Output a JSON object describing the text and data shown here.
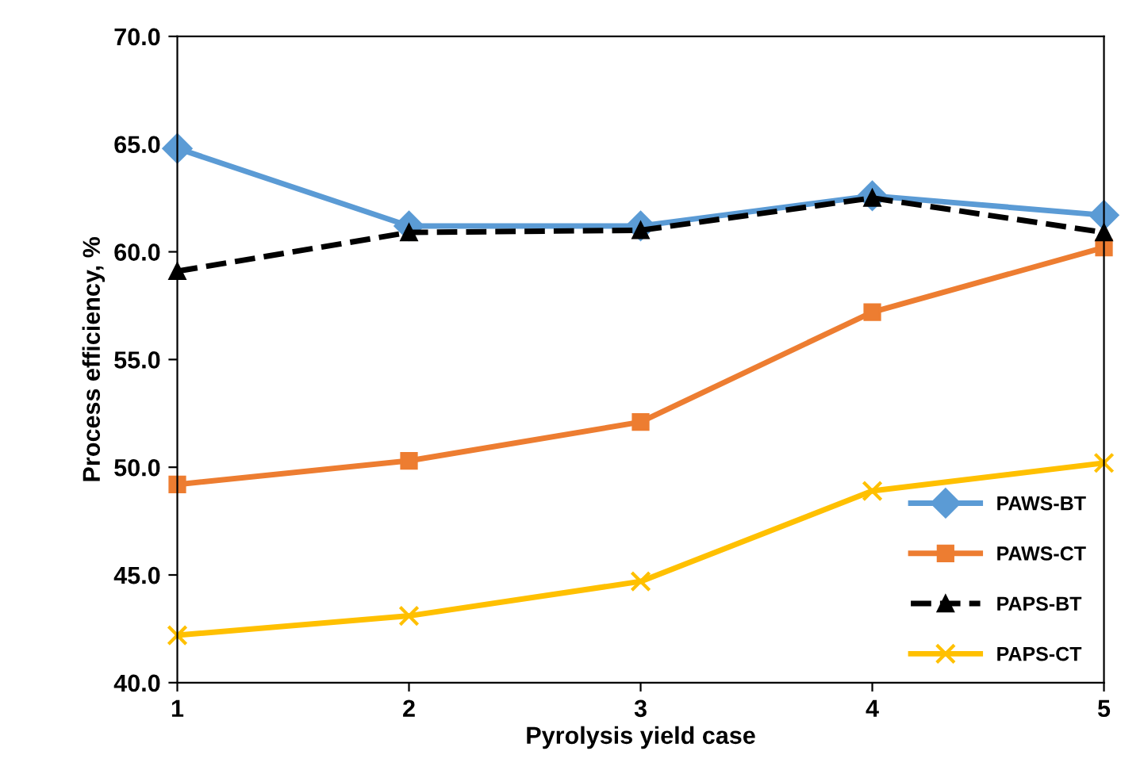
{
  "chart_data": {
    "type": "line",
    "xlabel": "Pyrolysis yield case",
    "ylabel": "Process efficiency, %",
    "x": [
      1,
      2,
      3,
      4,
      5
    ],
    "xlim": [
      1,
      5
    ],
    "xticks": [
      1,
      2,
      3,
      4,
      5
    ],
    "ylim": [
      40,
      70
    ],
    "yticks": [
      {
        "value": 40,
        "label": "40.0"
      },
      {
        "value": 45,
        "label": "45.0"
      },
      {
        "value": 50,
        "label": "50.0"
      },
      {
        "value": 55,
        "label": "55.0"
      },
      {
        "value": 60,
        "label": "60.0"
      },
      {
        "value": 65,
        "label": "65.0"
      },
      {
        "value": 70,
        "label": "70.0"
      }
    ],
    "grid": false,
    "legend": "bottom right",
    "series": [
      {
        "name": "PAWS-BT",
        "color": "#5b9bd5",
        "marker": "diamond",
        "line_style": "solid",
        "values": [
          64.8,
          61.2,
          61.2,
          62.6,
          61.7
        ]
      },
      {
        "name": "PAWS-CT",
        "color": "#ed7d31",
        "marker": "square",
        "line_style": "solid",
        "values": [
          49.2,
          50.3,
          52.1,
          57.2,
          60.2
        ]
      },
      {
        "name": "PAPS-BT",
        "color": "#000000",
        "marker": "triangle",
        "line_style": "dashed",
        "values": [
          59.1,
          60.9,
          61.0,
          62.5,
          60.9
        ]
      },
      {
        "name": "PAPS-CT",
        "color": "#ffc000",
        "marker": "cross",
        "line_style": "solid",
        "values": [
          42.2,
          43.1,
          44.7,
          48.9,
          50.2
        ]
      }
    ]
  }
}
